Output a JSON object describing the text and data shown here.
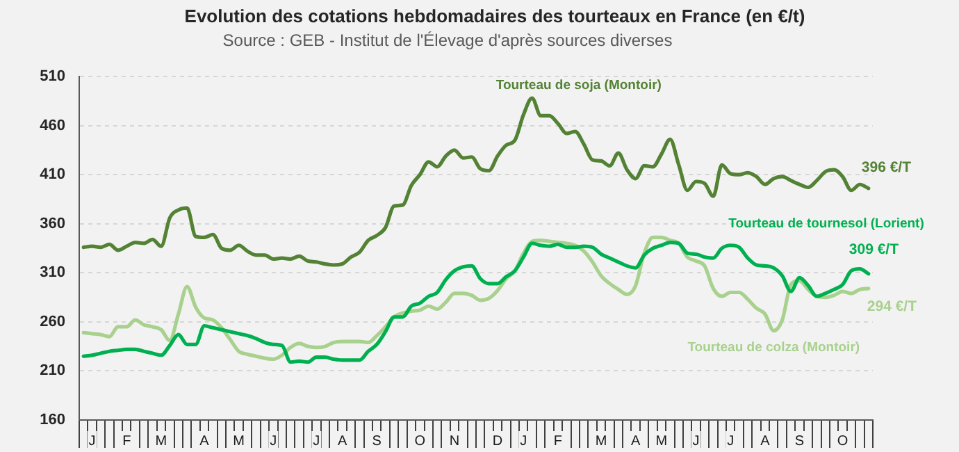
{
  "chart_data": {
    "type": "line",
    "title": "Evolution des cotations hebdomadaires des tourteaux en France (en €/t)",
    "subtitle": "Source : GEB - Institut de l'Élevage d'après sources diverses",
    "categories": [
      null,
      "J",
      null,
      null,
      null,
      "F",
      null,
      null,
      null,
      "M",
      null,
      null,
      null,
      null,
      "A",
      null,
      null,
      null,
      "M",
      null,
      null,
      null,
      "J",
      null,
      null,
      null,
      null,
      "J",
      null,
      null,
      "A",
      null,
      null,
      null,
      "S",
      null,
      null,
      null,
      null,
      "O",
      null,
      null,
      null,
      "N",
      null,
      null,
      null,
      null,
      "D",
      null,
      null,
      "J",
      null,
      null,
      null,
      "F",
      null,
      null,
      null,
      null,
      "M",
      null,
      null,
      null,
      "A",
      null,
      null,
      "M",
      null,
      null,
      null,
      "J",
      null,
      null,
      null,
      "J",
      null,
      null,
      null,
      "A",
      null,
      null,
      null,
      "S",
      null,
      null,
      null,
      null,
      "O",
      null,
      null,
      null
    ],
    "series": [
      {
        "name": "Tourteau de soja (Montoir)",
        "color": "#548235",
        "values": [
          336,
          337,
          336,
          339,
          333,
          337,
          341,
          340,
          344,
          337,
          366,
          374,
          376,
          347,
          346,
          349,
          335,
          333,
          338,
          332,
          328,
          328,
          324,
          325,
          324,
          327,
          322,
          321,
          319,
          318,
          319,
          326,
          331,
          343,
          348,
          356,
          378,
          379,
          399,
          410,
          423,
          418,
          429,
          435,
          427,
          428,
          416,
          414,
          429,
          440,
          445,
          471,
          488,
          470,
          470,
          462,
          452,
          454,
          441,
          425,
          424,
          419,
          432,
          415,
          406,
          419,
          418,
          431,
          446,
          420,
          394,
          403,
          401,
          388,
          420,
          411,
          410,
          412,
          408,
          400,
          406,
          408,
          404,
          400,
          397,
          404,
          413,
          415,
          408,
          394,
          400,
          396
        ],
        "value_labels": [
          null,
          null,
          null,
          null,
          null,
          null,
          null,
          null,
          null,
          null,
          null,
          null,
          null,
          null,
          null,
          null,
          null,
          null,
          null,
          null,
          null,
          null,
          null,
          null,
          null,
          null,
          null,
          null,
          null,
          null,
          null,
          null,
          null,
          null,
          null,
          null,
          null,
          null,
          null,
          null,
          null,
          null,
          null,
          null,
          null,
          null,
          null,
          null,
          null,
          null,
          null,
          null,
          null,
          null,
          null,
          null,
          null,
          null,
          null,
          null,
          null,
          null,
          null,
          null,
          null,
          null,
          null,
          null,
          null,
          null,
          null,
          null,
          null,
          null,
          null,
          null,
          null,
          null,
          null,
          null,
          null,
          null,
          null,
          null,
          null,
          null,
          null,
          null,
          null,
          null,
          null,
          "396 €/T"
        ]
      },
      {
        "name": "Tourteau de tournesol (Lorient)",
        "color": "#00b050",
        "values": [
          225,
          226,
          228,
          230,
          231,
          232,
          232,
          230,
          228,
          226,
          236,
          247,
          237,
          237,
          256,
          254,
          252,
          250,
          248,
          246,
          243,
          239,
          237,
          236,
          219,
          220,
          219,
          224,
          224,
          222,
          221,
          221,
          221,
          230,
          237,
          250,
          265,
          265,
          276,
          279,
          286,
          290,
          303,
          312,
          316,
          317,
          304,
          299,
          299,
          306,
          312,
          326,
          340,
          338,
          337,
          339,
          336,
          336,
          337,
          336,
          329,
          325,
          321,
          317,
          315,
          328,
          335,
          338,
          341,
          340,
          330,
          329,
          326,
          325,
          335,
          338,
          336,
          325,
          318,
          317,
          315,
          307,
          291,
          305,
          297,
          286,
          289,
          293,
          298,
          312,
          314,
          309
        ],
        "value_labels": [
          null,
          null,
          null,
          null,
          null,
          null,
          null,
          null,
          null,
          null,
          null,
          null,
          null,
          null,
          null,
          null,
          null,
          null,
          null,
          null,
          null,
          null,
          null,
          null,
          null,
          null,
          null,
          null,
          null,
          null,
          null,
          null,
          null,
          null,
          null,
          null,
          null,
          null,
          null,
          null,
          null,
          null,
          null,
          null,
          null,
          null,
          null,
          null,
          null,
          null,
          null,
          null,
          null,
          null,
          null,
          null,
          null,
          null,
          null,
          null,
          null,
          null,
          null,
          null,
          null,
          null,
          null,
          null,
          null,
          null,
          null,
          null,
          null,
          null,
          null,
          null,
          null,
          null,
          null,
          null,
          null,
          null,
          null,
          null,
          null,
          null,
          null,
          null,
          null,
          null,
          null,
          "309 €/T"
        ]
      },
      {
        "name": "Tourteau de colza (Montoir)",
        "color": "#a9d18e",
        "values": [
          249,
          248,
          247,
          245,
          255,
          255,
          262,
          257,
          255,
          252,
          241,
          268,
          296,
          275,
          264,
          262,
          254,
          242,
          230,
          227,
          225,
          223,
          222,
          226,
          234,
          238,
          235,
          234,
          235,
          239,
          240,
          240,
          240,
          239,
          246,
          255,
          265,
          269,
          271,
          272,
          276,
          273,
          280,
          289,
          289,
          287,
          282,
          284,
          292,
          304,
          312,
          330,
          342,
          343,
          342,
          341,
          340,
          338,
          332,
          321,
          307,
          299,
          293,
          288,
          297,
          330,
          346,
          346,
          343,
          340,
          326,
          322,
          317,
          294,
          286,
          290,
          290,
          283,
          274,
          268,
          251,
          262,
          298,
          302,
          293,
          286,
          285,
          287,
          291,
          289,
          293,
          294
        ],
        "value_labels": [
          null,
          null,
          null,
          null,
          null,
          null,
          null,
          null,
          null,
          null,
          null,
          null,
          null,
          null,
          null,
          null,
          null,
          null,
          null,
          null,
          null,
          null,
          null,
          null,
          null,
          null,
          null,
          null,
          null,
          null,
          null,
          null,
          null,
          null,
          null,
          null,
          null,
          null,
          null,
          null,
          null,
          null,
          null,
          null,
          null,
          null,
          null,
          null,
          null,
          null,
          null,
          null,
          null,
          null,
          null,
          null,
          null,
          null,
          null,
          null,
          null,
          null,
          null,
          null,
          null,
          null,
          null,
          null,
          null,
          null,
          null,
          null,
          null,
          null,
          null,
          null,
          null,
          null,
          null,
          null,
          null,
          null,
          null,
          null,
          null,
          null,
          null,
          null,
          null,
          null,
          null,
          "294 €/T"
        ]
      }
    ],
    "ylim": [
      160,
      510
    ],
    "yticks": [
      160,
      210,
      260,
      310,
      360,
      410,
      460,
      510
    ],
    "grid": "y",
    "legend": false,
    "marker": "none",
    "line_style": "solid"
  }
}
